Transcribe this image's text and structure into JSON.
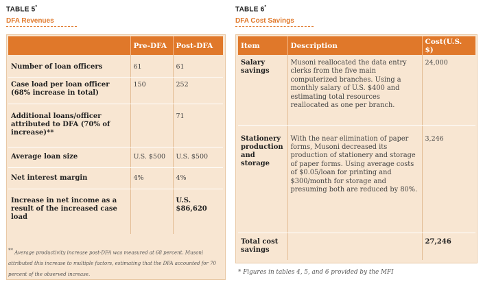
{
  "table5": {
    "number": "TABLE 5",
    "number_mark": "*",
    "subtitle": "DFA Revenues",
    "headers": [
      "",
      "Pre-DFA",
      "Post-DFA"
    ],
    "rows": [
      {
        "label": "Number of loan officers",
        "pre": "61",
        "post": "61"
      },
      {
        "label": "Case load per loan officer (68% increase in total)",
        "pre": "150",
        "post": "252"
      },
      {
        "label": "Additional loans/officer attributed to DFA (70% of increase)**",
        "pre": "",
        "post": "71"
      },
      {
        "label": "Average loan size",
        "pre": "U.S. $500",
        "post": "U.S. $500"
      },
      {
        "label": "Net interest margin",
        "pre": "4%",
        "post": "4%"
      },
      {
        "label": "Increase in net income as a result of the increased case load",
        "pre": "",
        "post": "U.S. $86,620"
      }
    ],
    "footnote_mark": "**",
    "footnote": "Average productivity increase post-DFA was measured at 68 percent. Musoni attributed this increase to multiple factors, estimating that the DFA accounted for 70 percent of the observed increase."
  },
  "table6": {
    "number": "TABLE 6",
    "number_mark": "*",
    "subtitle": "DFA Cost Savings",
    "headers": [
      "Item",
      "Description",
      "Cost(U.S. $)"
    ],
    "rows": [
      {
        "item": "Salary savings",
        "description": "Musoni reallocated the data entry clerks from the five main computerized branches. Using a monthly salary of U.S. $400 and estimating total resources reallocated as one per branch.",
        "cost": "24,000"
      },
      {
        "item": "Stationery production and storage",
        "description": "With the near elimination of paper forms, Musoni decreased its production of stationery and storage of paper forms. Using average costs of $0.05/loan for printing and $300/month for storage and presuming both are reduced by 80%.",
        "cost": "3,246"
      },
      {
        "item": "Total cost savings",
        "description": "",
        "cost": "27,246"
      }
    ],
    "footnote": "* Figures in tables 4, 5, and 6 provided by the MFI"
  }
}
